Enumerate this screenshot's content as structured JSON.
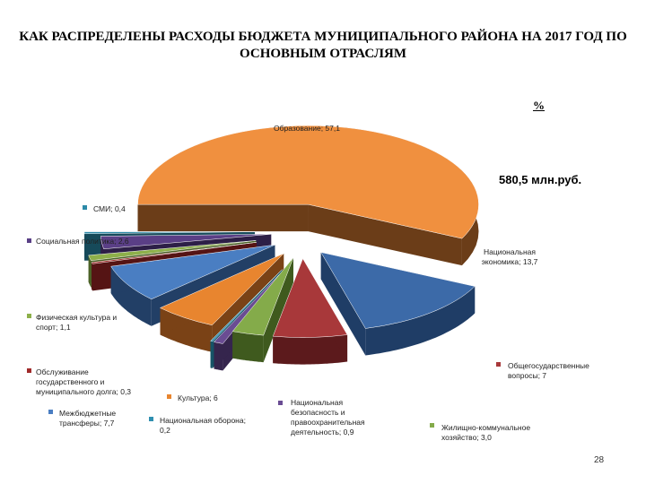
{
  "title": "КАК РАСПРЕДЕЛЕНЫ РАСХОДЫ БЮДЖЕТА МУНИЦИПАЛЬНОГО РАЙОНА НА 2017 ГОД ПО ОСНОВНЫМ ОТРАСЛЯМ",
  "unit_label": "%",
  "total_label": "580,5 млн.руб.",
  "page_number": "28",
  "chart_data": {
    "type": "pie",
    "title": "КАК РАСПРЕДЕЛЕНЫ РАСХОДЫ БЮДЖЕТА МУНИЦИПАЛЬНОГО РАЙОНА НА 2017 ГОД ПО ОСНОВНЫМ ОТРАСЛЯМ",
    "unit": "%",
    "exploded": true,
    "three_d": true,
    "slices": [
      {
        "category": "Образование",
        "value": 57.1,
        "label_lines": [
          "Образование; 57,1"
        ],
        "color": "#f0903f",
        "side": "#6b3d18",
        "label_pos": "inside"
      },
      {
        "category": "Национальная экономика",
        "value": 13.7,
        "label_lines": [
          "Национальная",
          "экономика; 13,7"
        ],
        "color": "#3c6aa8",
        "side": "#1f3d66",
        "label_pos": "inside"
      },
      {
        "category": "Общегосударственные вопросы",
        "value": 7,
        "label_lines": [
          "Общегосударственные",
          "вопросы; 7"
        ],
        "color": "#a8383a",
        "side": "#5c1a1c",
        "label_pos": "outside-right"
      },
      {
        "category": "Жилищно-коммунальное хозяйство",
        "value": 3.0,
        "label_lines": [
          "Жилищно-коммунальное",
          "хозяйство; 3,0"
        ],
        "color": "#84ab4a",
        "side": "#3f5a1e",
        "label_pos": "outside-bottom"
      },
      {
        "category": "Национальная безопасность и правоохранительная деятельность",
        "value": 0.9,
        "label_lines": [
          "Национальная",
          "безопасность и",
          "правоохранительная",
          "деятельность; 0,9"
        ],
        "color": "#6a4c93",
        "side": "#35254d",
        "label_pos": "outside-bottom"
      },
      {
        "category": "Национальная оборона",
        "value": 0.2,
        "label_lines": [
          "Национальная оборона;",
          "0,2"
        ],
        "color": "#2f8fb0",
        "side": "#165366",
        "label_pos": "outside-bottom"
      },
      {
        "category": "Культура",
        "value": 6,
        "label_lines": [
          "Культура; 6"
        ],
        "color": "#e8852f",
        "side": "#7a4216",
        "label_pos": "outside-bottom"
      },
      {
        "category": "Межбюджетные трансферы",
        "value": 7.7,
        "label_lines": [
          "Межбюджетные",
          "трансферы; 7,7"
        ],
        "color": "#4a7ec2",
        "side": "#223f66",
        "label_pos": "outside-left"
      },
      {
        "category": "Обслуживание государственного и муниципального долга",
        "value": 0.3,
        "label_lines": [
          "Обслуживание",
          "государственного и",
          "муниципального долга; 0,3"
        ],
        "color": "#a02a2a",
        "side": "#551414",
        "label_pos": "outside-left"
      },
      {
        "category": "Физическая культура и спорт",
        "value": 1.1,
        "label_lines": [
          "Физическая культура и",
          "спорт; 1,1"
        ],
        "color": "#8db04a",
        "side": "#4b6226",
        "label_pos": "outside-left"
      },
      {
        "category": "Социальная политика",
        "value": 2.6,
        "label_lines": [
          "Социальная политика; 2,6"
        ],
        "color": "#5a3f86",
        "side": "#2d1f47",
        "label_pos": "outside-left"
      },
      {
        "category": "СМИ",
        "value": 0.4,
        "label_lines": [
          "СМИ; 0,4"
        ],
        "color": "#2c8aa8",
        "side": "#164a5a",
        "label_pos": "outside-left"
      }
    ]
  }
}
